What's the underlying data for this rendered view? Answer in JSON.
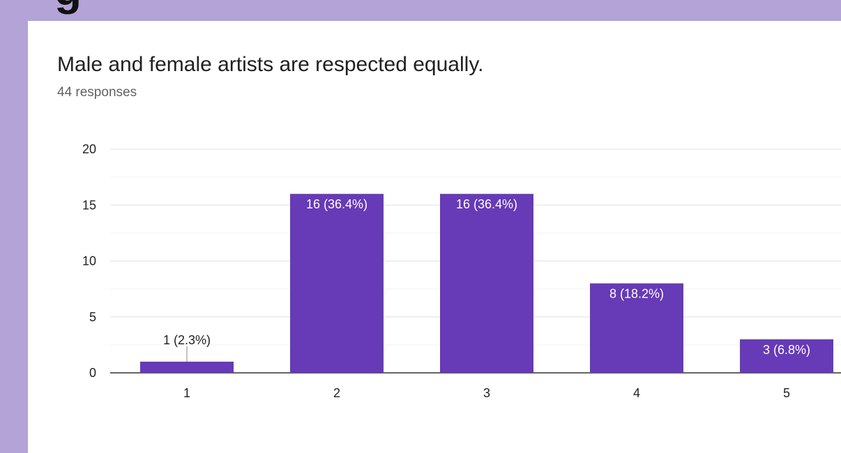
{
  "page": {
    "title": "Male and female artists are respected equally.",
    "subtitle": "44 responses",
    "top_cut_text": "g"
  },
  "colors": {
    "background": "#b3a3d6",
    "card": "#ffffff",
    "bar": "#673ab7",
    "grid": "#e6e6e6",
    "axis": "#333333"
  },
  "chart_data": {
    "type": "bar",
    "categories": [
      "1",
      "2",
      "3",
      "4",
      "5"
    ],
    "values": [
      1,
      16,
      16,
      8,
      3
    ],
    "data_labels": [
      "1 (2.3%)",
      "16 (36.4%)",
      "16 (36.4%)",
      "8 (18.2%)",
      "3 (6.8%)"
    ],
    "ylim": [
      0,
      20
    ],
    "yticks": [
      0,
      5,
      10,
      15,
      20
    ],
    "grid": true,
    "title": "",
    "xlabel": "",
    "ylabel": ""
  }
}
